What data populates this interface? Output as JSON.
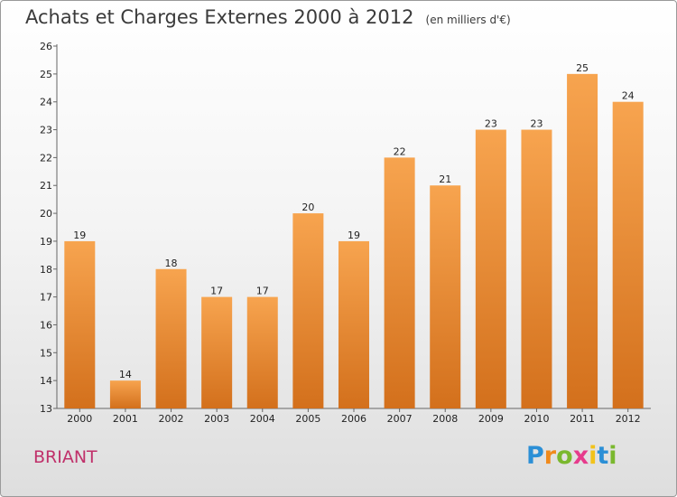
{
  "title": "Achats et Charges Externes 2000 à 2012",
  "subtitle": "(en milliers d'€)",
  "place": "BRIANT",
  "brand": {
    "letters": [
      "P",
      "r",
      "o",
      "x",
      "i",
      "t",
      "i"
    ],
    "colors": [
      "#2b8fd6",
      "#f08a1c",
      "#7ab82e",
      "#e63b8c",
      "#f2c21a",
      "#2b8fd6",
      "#7ab82e"
    ]
  },
  "colors": {
    "bar_light": "#f7a44f",
    "bar_dark": "#d3701c",
    "place": "#c0306a"
  },
  "chart_data": {
    "type": "bar",
    "categories": [
      "2000",
      "2001",
      "2002",
      "2003",
      "2004",
      "2005",
      "2006",
      "2007",
      "2008",
      "2009",
      "2010",
      "2011",
      "2012"
    ],
    "values": [
      19,
      14,
      18,
      17,
      17,
      20,
      19,
      22,
      21,
      23,
      23,
      25,
      24
    ],
    "ylim": [
      13,
      26
    ],
    "yticks": [
      13,
      14,
      15,
      16,
      17,
      18,
      19,
      20,
      21,
      22,
      23,
      24,
      25,
      26
    ],
    "grid": false,
    "data_labels": true
  }
}
